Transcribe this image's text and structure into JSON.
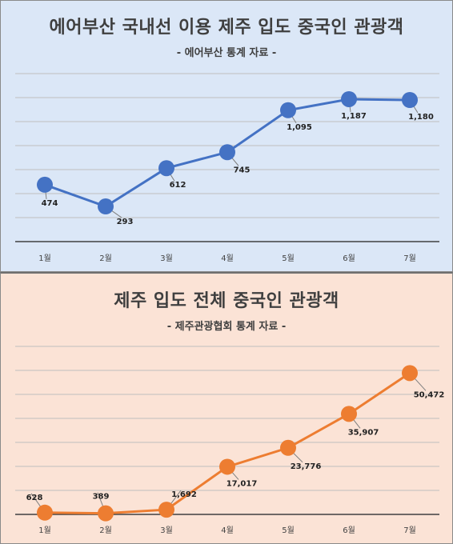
{
  "top_chart": {
    "title": "에어부산 국내선 이용 제주 입도 중국인 관광객",
    "subtitle": "- 에어부산 통계 자료 -",
    "color": "#4472c4"
  },
  "bottom_chart": {
    "title": "제주 입도 전체 중국인 관광객",
    "subtitle": "- 제주관광협회 통계 자료 -",
    "color": "#ed7d31"
  },
  "chart_data": [
    {
      "type": "line",
      "title": "에어부산 국내선 이용 제주 입도 중국인 관광객",
      "subtitle": "- 에어부산 통계 자료 -",
      "categories": [
        "1월",
        "2월",
        "3월",
        "4월",
        "5월",
        "6월",
        "7월"
      ],
      "values": [
        474,
        293,
        612,
        745,
        1095,
        1187,
        1180
      ],
      "labels": [
        "474",
        "293",
        "612",
        "745",
        "1,095",
        "1,187",
        "1,180"
      ],
      "ylim": [
        0,
        1400
      ],
      "grid": true,
      "legend": "none"
    },
    {
      "type": "line",
      "title": "제주 입도 전체 중국인 관광객",
      "subtitle": "- 제주관광협회 통계 자료 -",
      "categories": [
        "1월",
        "2월",
        "3월",
        "4월",
        "5월",
        "6월",
        "7월"
      ],
      "values": [
        628,
        389,
        1692,
        17017,
        23776,
        35907,
        50472
      ],
      "labels": [
        "628",
        "389",
        "1,692",
        "17,017",
        "23,776",
        "35,907",
        "50,472"
      ],
      "ylim": [
        0,
        60000
      ],
      "grid": true,
      "legend": "none"
    }
  ]
}
